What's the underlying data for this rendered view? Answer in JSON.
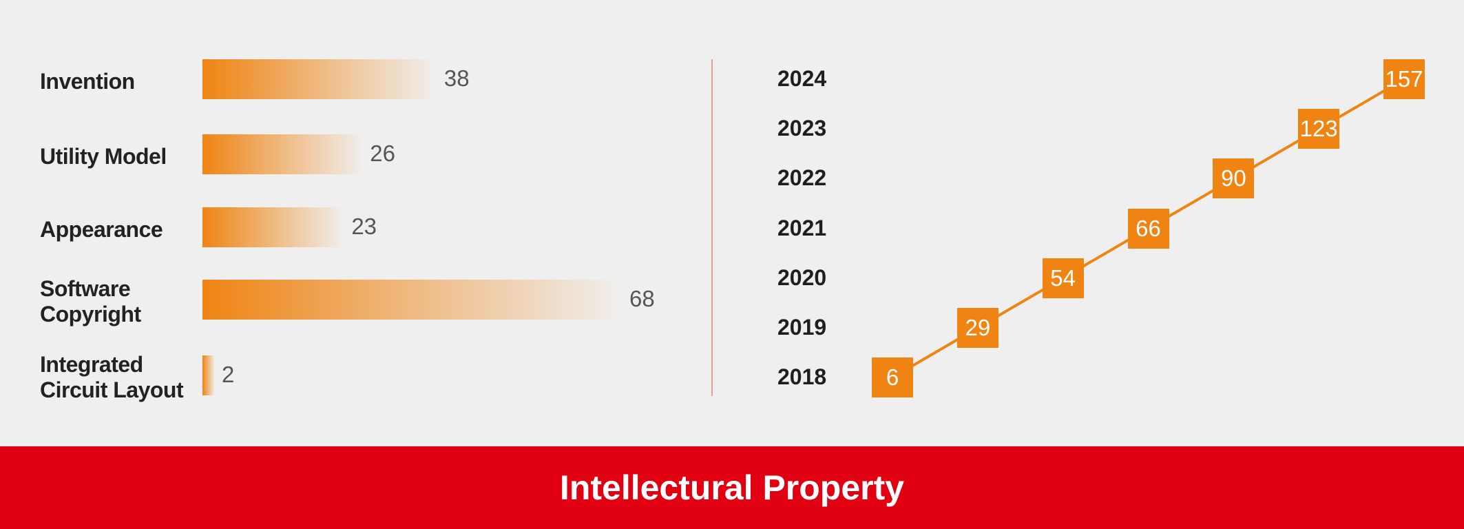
{
  "colors": {
    "accent": "#ef8413",
    "footer": "#e00012",
    "divider": "#e2a08e",
    "background": "#efefef"
  },
  "footer": {
    "title": "Intellectural Property"
  },
  "chart_data": [
    {
      "type": "bar",
      "orientation": "horizontal",
      "categories": [
        "Invention",
        "Utility Model",
        "Appearance",
        "Software Copyright",
        "Integrated Circuit Layout"
      ],
      "category_lines": [
        [
          "Invention"
        ],
        [
          "Utility Model"
        ],
        [
          "Appearance"
        ],
        [
          "Software",
          "Copyright"
        ],
        [
          "Integrated",
          "Circuit Layout"
        ]
      ],
      "values": [
        38,
        26,
        23,
        68,
        2
      ],
      "data_labels": [
        "38",
        "26",
        "23",
        "68",
        "2"
      ],
      "xlim": [
        0,
        68
      ],
      "grid": false
    },
    {
      "type": "line",
      "categories": [
        "2018",
        "2019",
        "2020",
        "2021",
        "2022",
        "2023",
        "2024"
      ],
      "values": [
        6,
        29,
        54,
        66,
        90,
        123,
        157
      ],
      "data_labels": [
        "6",
        "29",
        "54",
        "66",
        "90",
        "123",
        "157"
      ],
      "grid": false
    }
  ]
}
